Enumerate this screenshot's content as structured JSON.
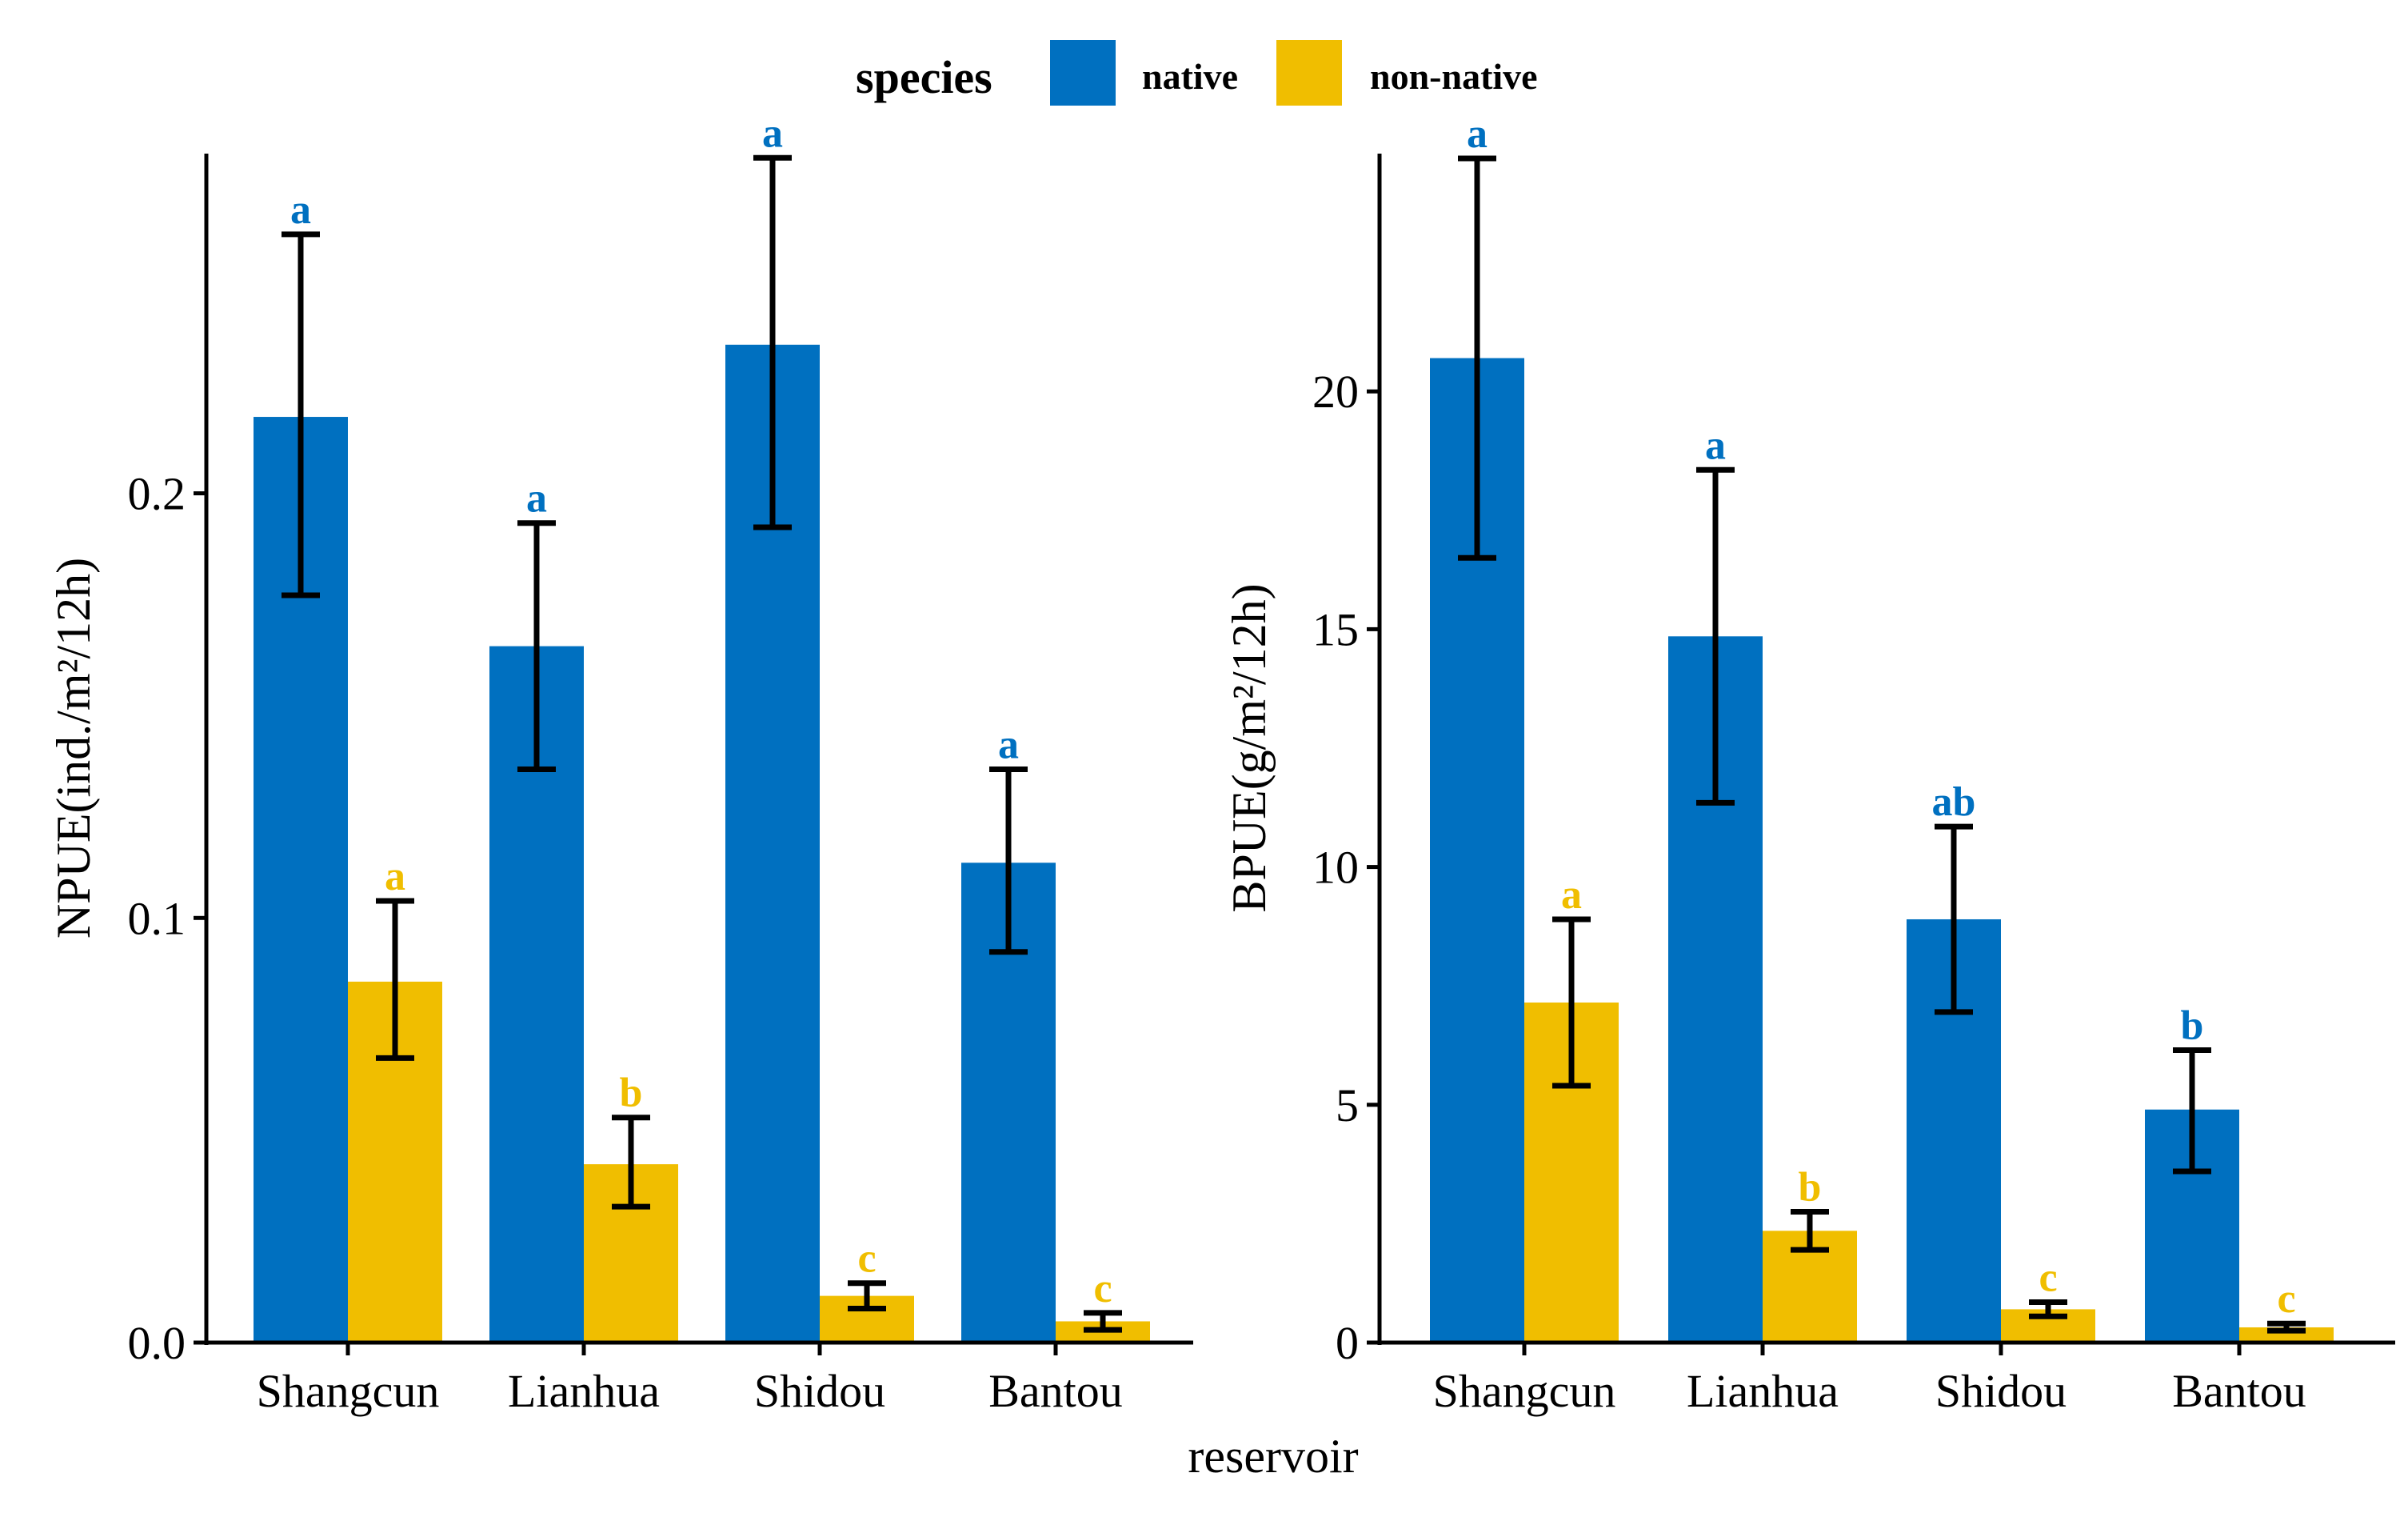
{
  "chart_data": [
    {
      "type": "bar",
      "ylabel": "NPUE(ind./m²/12h)",
      "ylim": [
        0,
        0.28
      ],
      "yticks": [
        0.0,
        0.1,
        0.2
      ],
      "ytick_labels": [
        "0.0",
        "0.1",
        "0.2"
      ],
      "categories": [
        "Shangcun",
        "Lianhua",
        "Shidou",
        "Bantou"
      ],
      "series": [
        {
          "name": "native",
          "values": [
            0.218,
            0.164,
            0.235,
            0.113
          ],
          "error_low": [
            0.176,
            0.135,
            0.192,
            0.092
          ],
          "error_high": [
            0.261,
            0.193,
            0.279,
            0.135
          ],
          "labels": [
            "a",
            "a",
            "a",
            "a"
          ]
        },
        {
          "name": "non-native",
          "values": [
            0.085,
            0.042,
            0.011,
            0.005
          ],
          "error_low": [
            0.067,
            0.032,
            0.008,
            0.003
          ],
          "error_high": [
            0.104,
            0.053,
            0.014,
            0.007
          ],
          "labels": [
            "a",
            "b",
            "c",
            "c"
          ]
        }
      ]
    },
    {
      "type": "bar",
      "ylabel": "BPUE(g/m²/12h)",
      "ylim": [
        0,
        25
      ],
      "yticks": [
        0,
        5,
        10,
        15,
        20
      ],
      "ytick_labels": [
        "0",
        "5",
        "10",
        "15",
        "20"
      ],
      "categories": [
        "Shangcun",
        "Lianhua",
        "Shidou",
        "Bantou"
      ],
      "series": [
        {
          "name": "native",
          "values": [
            20.7,
            14.85,
            8.9,
            4.9
          ],
          "error_low": [
            16.5,
            11.35,
            6.95,
            3.6
          ],
          "error_high": [
            24.9,
            18.35,
            10.85,
            6.15
          ],
          "labels": [
            "a",
            "a",
            "ab",
            "b"
          ]
        },
        {
          "name": "non-native",
          "values": [
            7.15,
            2.35,
            0.7,
            0.32
          ],
          "error_low": [
            5.4,
            1.95,
            0.55,
            0.25
          ],
          "error_high": [
            8.9,
            2.75,
            0.85,
            0.4
          ],
          "labels": [
            "a",
            "b",
            "c",
            "c"
          ]
        }
      ]
    }
  ],
  "xlabel": "reservoir",
  "legend": {
    "title": "species",
    "placement": "top-center",
    "items": [
      {
        "label": "native",
        "color": "#0070c0"
      },
      {
        "label": "non-native",
        "color": "#f0be00"
      }
    ]
  }
}
